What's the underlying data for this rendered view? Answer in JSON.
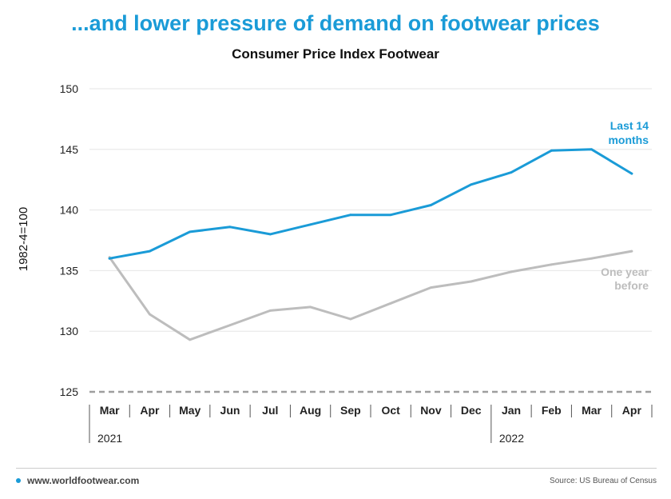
{
  "header": {
    "headline": "...and lower pressure of demand on footwear prices",
    "subtitle": "Consumer Price Index Footwear"
  },
  "chart_data": {
    "type": "line",
    "title": "Consumer Price Index Footwear",
    "ylabel": "1982-4=100",
    "xlabel": "",
    "categories": [
      "Mar",
      "Apr",
      "May",
      "Jun",
      "Jul",
      "Aug",
      "Sep",
      "Oct",
      "Nov",
      "Dec",
      "Jan",
      "Feb",
      "Mar",
      "Apr"
    ],
    "year_groups": [
      {
        "label": "2021",
        "start_index": 0,
        "end_index": 9
      },
      {
        "label": "2022",
        "start_index": 10,
        "end_index": 13
      }
    ],
    "ylim": [
      125,
      150
    ],
    "yticks": [
      125,
      130,
      135,
      140,
      145,
      150
    ],
    "grid": true,
    "series": [
      {
        "name": "Last 14 months",
        "name_lines": [
          "Last 14",
          "months"
        ],
        "color": "#1a9bd7",
        "values": [
          136.0,
          136.6,
          138.2,
          138.6,
          138.0,
          138.8,
          139.6,
          139.6,
          140.4,
          142.1,
          143.1,
          144.9,
          145.0,
          143.0
        ]
      },
      {
        "name": "One year before",
        "name_lines": [
          "One year",
          "before"
        ],
        "color": "#bdbdbd",
        "values": [
          136.1,
          131.4,
          129.3,
          130.5,
          131.7,
          132.0,
          131.0,
          132.3,
          133.6,
          134.1,
          134.9,
          135.5,
          136.0,
          136.6
        ]
      }
    ],
    "baseline_style": "dashed"
  },
  "footer": {
    "site": "www.worldfootwear.com",
    "source": "Source: US Bureau of Census"
  }
}
